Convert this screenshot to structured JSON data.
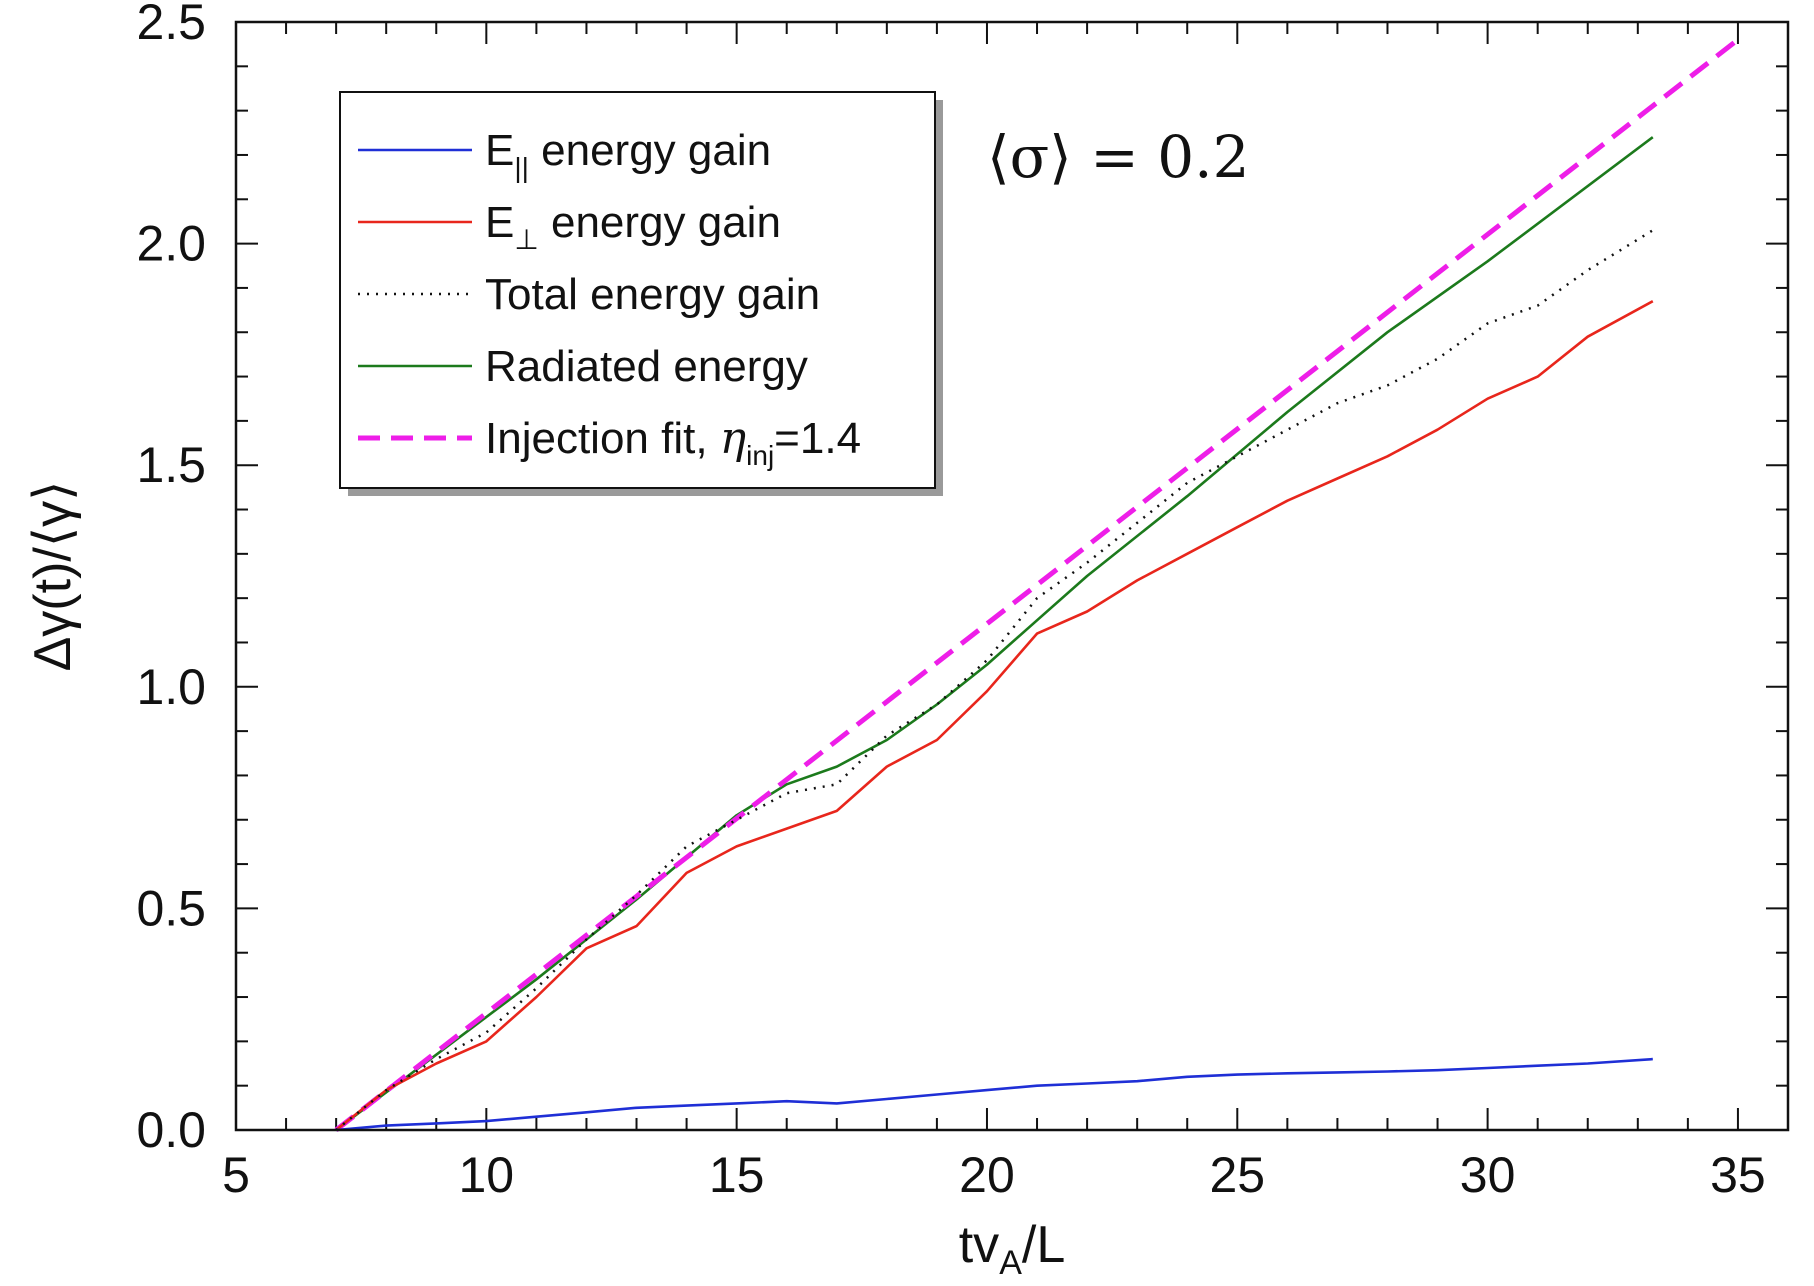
{
  "chart_data": {
    "type": "line",
    "xlabel": "tv",
    "xlabel_sub": "A",
    "xlabel_tail": "/L",
    "ylabel": "Δγ(t)/⟨γ⟩",
    "xlim": [
      5,
      36
    ],
    "ylim": [
      0,
      2.5
    ],
    "xticks": [
      5,
      10,
      15,
      20,
      25,
      30,
      35
    ],
    "xtick_labels": [
      "5",
      "10",
      "15",
      "20",
      "25",
      "30",
      "35"
    ],
    "yticks": [
      0,
      0.5,
      1.0,
      1.5,
      2.0,
      2.5
    ],
    "ytick_labels": [
      "0.0",
      "0.5",
      "1.0",
      "1.5",
      "2.0",
      "2.5"
    ],
    "annotation": "⟨σ⟩ = 0.2",
    "legend_position": "top-left",
    "series": [
      {
        "name": "E|| energy gain",
        "label_main": "E",
        "label_sub": "||",
        "label_tail": " energy gain",
        "color": "#1f2fd6",
        "style": "solid",
        "x": [
          7,
          8,
          9,
          10,
          11,
          12,
          13,
          14,
          15,
          16,
          17,
          18,
          19,
          20,
          21,
          22,
          23,
          24,
          25,
          26,
          27,
          28,
          29,
          30,
          31,
          32,
          33.3
        ],
        "y": [
          0.0,
          0.01,
          0.015,
          0.02,
          0.03,
          0.04,
          0.05,
          0.055,
          0.06,
          0.065,
          0.06,
          0.07,
          0.08,
          0.09,
          0.1,
          0.105,
          0.11,
          0.12,
          0.125,
          0.128,
          0.13,
          0.132,
          0.135,
          0.14,
          0.145,
          0.15,
          0.16
        ]
      },
      {
        "name": "E⊥ energy gain",
        "label_main": "E",
        "label_sub": "⊥",
        "label_tail": " energy gain",
        "color": "#e8261c",
        "style": "solid",
        "x": [
          7,
          8,
          9,
          10,
          11,
          12,
          13,
          14,
          15,
          16,
          17,
          18,
          19,
          20,
          21,
          22,
          23,
          24,
          25,
          26,
          27,
          28,
          29,
          30,
          31,
          32,
          33.3
        ],
        "y": [
          0.0,
          0.09,
          0.15,
          0.2,
          0.3,
          0.41,
          0.46,
          0.58,
          0.64,
          0.68,
          0.72,
          0.82,
          0.88,
          0.99,
          1.12,
          1.17,
          1.24,
          1.3,
          1.36,
          1.42,
          1.47,
          1.52,
          1.58,
          1.65,
          1.7,
          1.79,
          1.87
        ]
      },
      {
        "name": "Total energy gain",
        "label_main": "Total energy gain",
        "label_sub": "",
        "label_tail": "",
        "color": "#111111",
        "style": "dotted",
        "x": [
          7,
          8,
          9,
          10,
          11,
          12,
          13,
          14,
          15,
          16,
          17,
          18,
          19,
          20,
          21,
          22,
          23,
          24,
          25,
          26,
          27,
          28,
          29,
          30,
          31,
          32,
          33.3
        ],
        "y": [
          0.0,
          0.09,
          0.16,
          0.22,
          0.32,
          0.43,
          0.53,
          0.64,
          0.7,
          0.76,
          0.78,
          0.89,
          0.96,
          1.06,
          1.2,
          1.28,
          1.37,
          1.46,
          1.52,
          1.58,
          1.64,
          1.68,
          1.74,
          1.82,
          1.86,
          1.94,
          2.03
        ]
      },
      {
        "name": "Radiated energy",
        "label_main": "Radiated energy",
        "label_sub": "",
        "label_tail": "",
        "color": "#1c7a1c",
        "style": "solid",
        "x": [
          7,
          9,
          11,
          13,
          15,
          16,
          17,
          18,
          19,
          20,
          21,
          22,
          24,
          26,
          28,
          30,
          33.3
        ],
        "y": [
          0.0,
          0.17,
          0.34,
          0.52,
          0.71,
          0.78,
          0.82,
          0.88,
          0.96,
          1.05,
          1.15,
          1.25,
          1.43,
          1.62,
          1.8,
          1.96,
          2.24
        ]
      },
      {
        "name": "Injection fit, ηinj=1.4",
        "label_main": "Injection fit, ",
        "label_eta": "η",
        "label_sub": "inj",
        "label_tail": "=1.4",
        "color": "#ee1ee8",
        "style": "dashed",
        "x": [
          7,
          35
        ],
        "y": [
          0.0,
          2.46
        ]
      }
    ]
  }
}
